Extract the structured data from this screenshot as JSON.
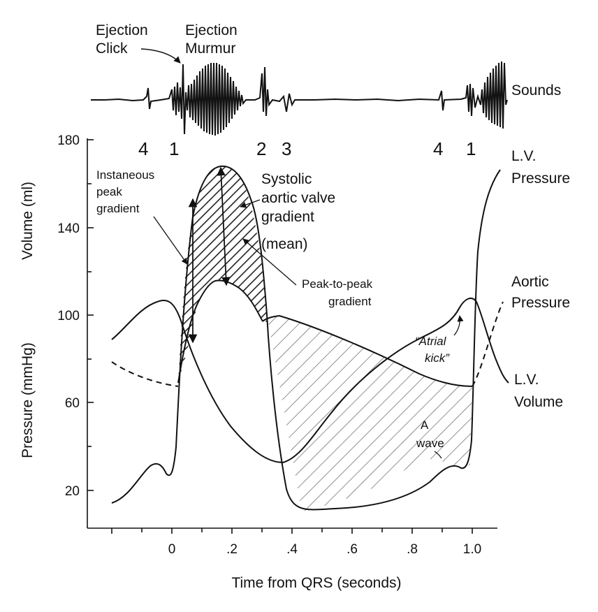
{
  "sounds": {
    "label": "Sounds",
    "ejection_click": [
      "Ejection",
      "Click"
    ],
    "ejection_murmur": [
      "Ejection",
      "Murmur"
    ],
    "numbers_left": [
      "4",
      "1",
      "2",
      "3"
    ],
    "numbers_right": [
      "4",
      "1"
    ]
  },
  "axes": {
    "y_ticks": [
      "180",
      "140",
      "100",
      "60",
      "20"
    ],
    "x_ticks": [
      "0",
      ".2",
      ".4",
      ".6",
      ".8",
      "1.0"
    ],
    "y_title_volume": "Volume (ml)",
    "y_title_pressure": "Pressure (mmHg)",
    "x_title": "Time from QRS (seconds)"
  },
  "curve_labels": {
    "lv_pressure": [
      "L.V.",
      "Pressure"
    ],
    "aortic_pressure": [
      "Aortic",
      "Pressure"
    ],
    "lv_volume": [
      "L.V.",
      "Volume"
    ]
  },
  "annotations": {
    "instant_peak": [
      "Instaneous",
      "peak",
      "gradient"
    ],
    "systolic_mean": [
      "Systolic",
      "aortic valve",
      "gradient",
      "(mean)"
    ],
    "peak_to_peak": [
      "Peak-to-peak",
      "gradient"
    ],
    "atrial_kick": [
      "“Atrial",
      "kick”"
    ],
    "a_wave": [
      "A",
      "wave"
    ]
  },
  "colors": {
    "ink": "#111111",
    "hatch": "#555555",
    "background": "#ffffff"
  }
}
